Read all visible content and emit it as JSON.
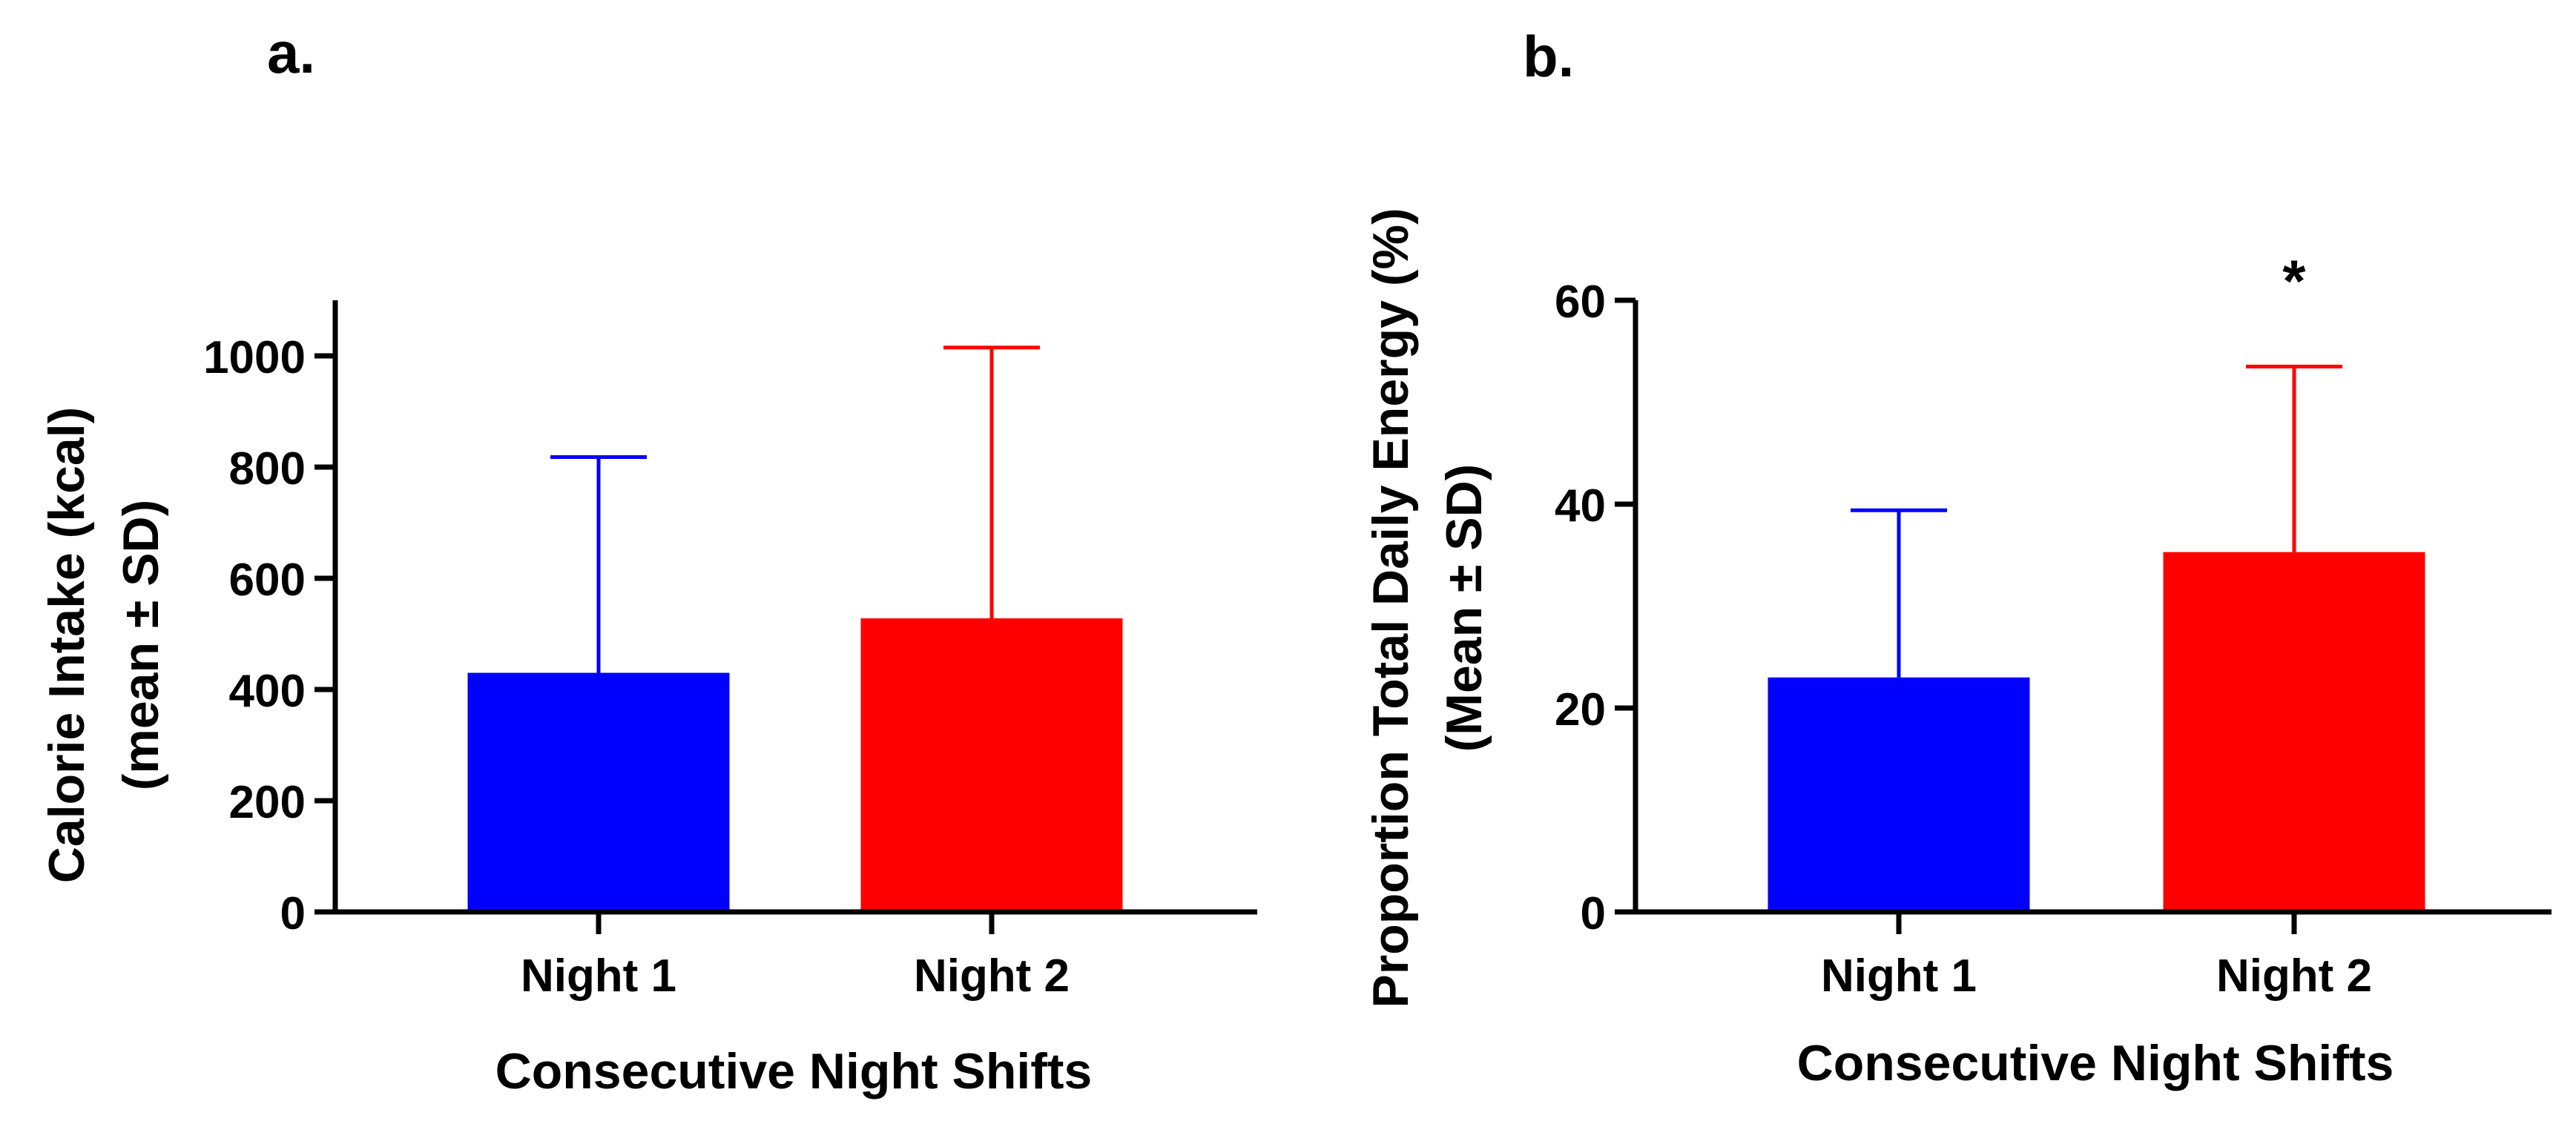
{
  "colors": {
    "axis": "#000000",
    "series": [
      "#0000ff",
      "#ff0000"
    ]
  },
  "chart_data": [
    {
      "type": "bar",
      "panel_label": "a.",
      "categories": [
        "Night 1",
        "Night 2"
      ],
      "values": [
        430,
        528
      ],
      "errors_upper": [
        818,
        1015
      ],
      "xlabel": "Consecutive Night Shifts",
      "ylabel_line1": "Calorie Intake (kcal)",
      "ylabel_line2": "(mean ± SD)",
      "ylim": [
        0,
        1100
      ],
      "yticks": [
        0,
        200,
        400,
        600,
        800,
        1000
      ],
      "annotations": []
    },
    {
      "type": "bar",
      "panel_label": "b.",
      "categories": [
        "Night 1",
        "Night 2"
      ],
      "values": [
        23,
        35.3
      ],
      "errors_upper": [
        39.4,
        53.5
      ],
      "xlabel": "Consecutive Night Shifts",
      "ylabel_line1": "Proportion Total Daily Energy (%)",
      "ylabel_line2": "(Mean ± SD)",
      "ylim": [
        0,
        60
      ],
      "yticks": [
        0,
        20,
        40,
        60
      ],
      "annotations": [
        {
          "category": "Night 2",
          "text": "*"
        }
      ]
    }
  ]
}
